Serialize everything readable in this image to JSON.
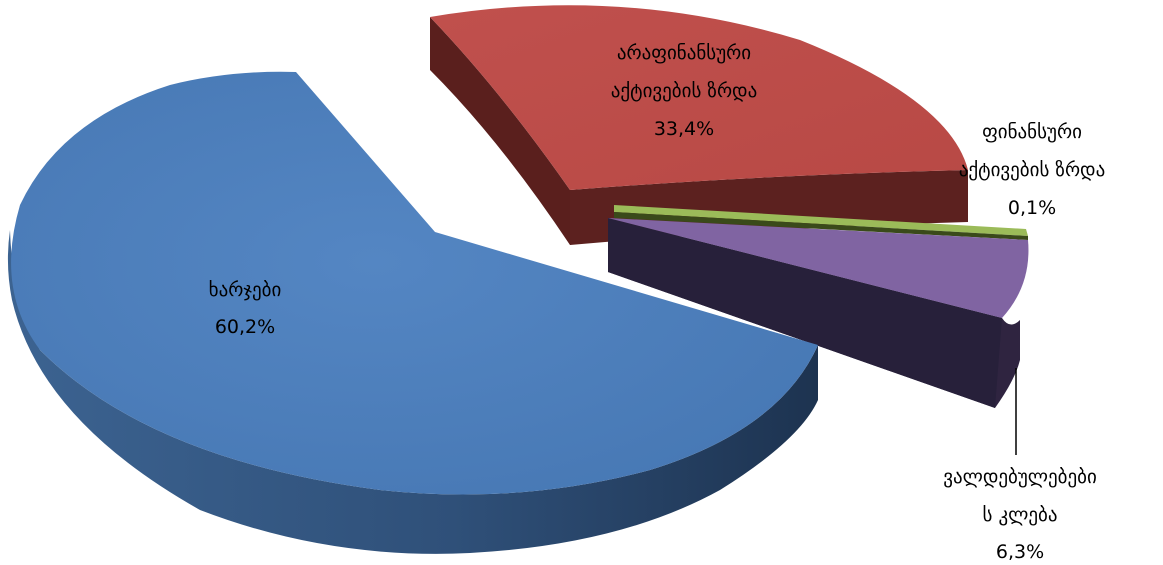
{
  "chart_data": {
    "type": "pie",
    "title": "",
    "three_d": true,
    "exploded": true,
    "slices": [
      {
        "label": "ხარჯები",
        "value": 60.2,
        "value_label": "60,2%",
        "color": "#4F81BD"
      },
      {
        "label": "არაფინანსური აქტივების ზრდა",
        "value": 33.4,
        "value_label": "33,4%",
        "color": "#C0504D"
      },
      {
        "label": "ფინანსური აქტივების ზრდა",
        "value": 0.1,
        "value_label": "0,1%",
        "color": "#9BBB59"
      },
      {
        "label": "ვალდებულებების კლება",
        "value": 6.3,
        "value_label": "6,3%",
        "color": "#8064A2"
      }
    ],
    "labels": {
      "expenses": {
        "line1": "ხარჯები",
        "value": "60,2%"
      },
      "nonfinancial": {
        "line1": "არაფინანსური",
        "line2": "აქტივების ზრდა",
        "value": "33,4%"
      },
      "financial": {
        "line1": "ფინანსური",
        "line2": "აქტივების ზრდა",
        "value": "0,1%"
      },
      "liabilities": {
        "line1": "ვალდებულებები",
        "line2": "ს კლება",
        "value": "6,3%"
      }
    },
    "legend": "none"
  }
}
